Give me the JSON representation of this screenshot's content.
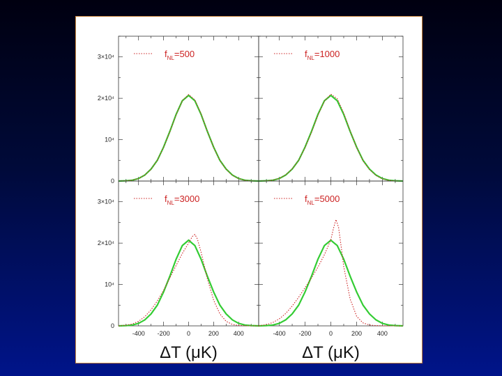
{
  "chart_data": {
    "type": "line",
    "xlabel": "ΔT (μK)",
    "xlim": [
      -560,
      560
    ],
    "xticks": [
      -400,
      -200,
      0,
      200,
      400
    ],
    "ylim": [
      0,
      35000
    ],
    "yticks": [
      {
        "value": 0,
        "label": "0"
      },
      {
        "value": 10000,
        "label": "10⁴"
      },
      {
        "value": 20000,
        "label": "2×10⁴"
      },
      {
        "value": 30000,
        "label": "3×10⁴"
      }
    ],
    "colors": {
      "gaussian": "#33cc33",
      "non_gaussian": "#cc2222"
    },
    "panels": [
      {
        "legend": {
          "prefix": "f",
          "subscript": "NL",
          "suffix": "=500"
        },
        "series": [
          {
            "style": "solid",
            "color": "#33cc33",
            "x": [
              -560,
              -500,
              -450,
              -400,
              -350,
              -300,
              -250,
              -200,
              -150,
              -100,
              -50,
              0,
              50,
              100,
              150,
              200,
              250,
              300,
              350,
              400,
              450,
              500,
              560
            ],
            "y": [
              0,
              60,
              200,
              600,
              1450,
              2900,
              5000,
              8200,
              12000,
              16100,
              19400,
              20700,
              19400,
              16100,
              12000,
              8200,
              5000,
              2900,
              1450,
              600,
              200,
              60,
              0
            ]
          },
          {
            "style": "dotted",
            "color": "#cc2222",
            "x": [
              -560,
              -500,
              -450,
              -400,
              -350,
              -300,
              -250,
              -200,
              -150,
              -100,
              -50,
              0,
              50,
              100,
              150,
              200,
              250,
              300,
              350,
              400,
              450,
              500,
              560
            ],
            "y": [
              0,
              60,
              200,
              600,
              1450,
              2900,
              5000,
              8150,
              11900,
              16000,
              19400,
              20900,
              19600,
              16200,
              12000,
              8150,
              4950,
              2850,
              1400,
              560,
              180,
              50,
              0
            ]
          }
        ]
      },
      {
        "legend": {
          "prefix": "f",
          "subscript": "NL",
          "suffix": "=1000"
        },
        "series": [
          {
            "style": "solid",
            "color": "#33cc33",
            "x": [
              -560,
              -500,
              -450,
              -400,
              -350,
              -300,
              -250,
              -200,
              -150,
              -100,
              -50,
              0,
              50,
              100,
              150,
              200,
              250,
              300,
              350,
              400,
              450,
              500,
              560
            ],
            "y": [
              0,
              60,
              200,
              600,
              1450,
              2900,
              5000,
              8200,
              12000,
              16100,
              19400,
              20700,
              19400,
              16100,
              12000,
              8200,
              5000,
              2900,
              1450,
              600,
              200,
              60,
              0
            ]
          },
          {
            "style": "dotted",
            "color": "#cc2222",
            "x": [
              -560,
              -500,
              -450,
              -400,
              -350,
              -300,
              -250,
              -200,
              -150,
              -100,
              -50,
              0,
              50,
              100,
              150,
              200,
              250,
              300,
              350,
              400,
              450,
              500,
              560
            ],
            "y": [
              0,
              70,
              220,
              640,
              1500,
              2950,
              5000,
              8100,
              11800,
              15900,
              19300,
              21000,
              19900,
              16400,
              12100,
              8100,
              4900,
              2800,
              1350,
              520,
              160,
              40,
              0
            ]
          }
        ]
      },
      {
        "legend": {
          "prefix": "f",
          "subscript": "NL",
          "suffix": "=3000"
        },
        "series": [
          {
            "style": "solid",
            "color": "#33cc33",
            "x": [
              -560,
              -500,
              -450,
              -400,
              -350,
              -300,
              -250,
              -200,
              -150,
              -100,
              -50,
              0,
              50,
              100,
              150,
              200,
              250,
              300,
              350,
              400,
              450,
              500,
              560
            ],
            "y": [
              0,
              60,
              200,
              600,
              1450,
              2900,
              5000,
              8200,
              12000,
              16100,
              19400,
              20700,
              19400,
              16100,
              12000,
              8200,
              5000,
              2900,
              1450,
              600,
              200,
              60,
              0
            ]
          },
          {
            "style": "dotted",
            "color": "#cc2222",
            "x": [
              -560,
              -500,
              -450,
              -400,
              -350,
              -300,
              -250,
              -200,
              -150,
              -100,
              -50,
              0,
              30,
              50,
              70,
              100,
              150,
              200,
              250,
              300,
              350,
              400,
              450,
              500,
              560
            ],
            "y": [
              0,
              150,
              450,
              1100,
              2200,
              3900,
              6000,
              8600,
              11600,
              14600,
              17500,
              20000,
              21600,
              22100,
              21000,
              17800,
              11400,
              6200,
              2900,
              1100,
              350,
              100,
              30,
              10,
              0
            ]
          }
        ]
      },
      {
        "legend": {
          "prefix": "f",
          "subscript": "NL",
          "suffix": "=5000"
        },
        "series": [
          {
            "style": "solid",
            "color": "#33cc33",
            "x": [
              -560,
              -500,
              -450,
              -400,
              -350,
              -300,
              -250,
              -200,
              -150,
              -100,
              -50,
              0,
              50,
              100,
              150,
              200,
              250,
              300,
              350,
              400,
              450,
              500,
              560
            ],
            "y": [
              0,
              60,
              200,
              600,
              1450,
              2900,
              5000,
              8200,
              12000,
              16100,
              19400,
              20700,
              19400,
              16100,
              12000,
              8200,
              5000,
              2900,
              1450,
              600,
              200,
              60,
              0
            ]
          },
          {
            "style": "dotted",
            "color": "#cc2222",
            "x": [
              -560,
              -500,
              -450,
              -400,
              -350,
              -300,
              -250,
              -200,
              -150,
              -100,
              -50,
              0,
              20,
              40,
              60,
              80,
              100,
              150,
              200,
              250,
              300,
              350,
              400,
              450,
              500,
              560
            ],
            "y": [
              0,
              300,
              800,
              1700,
              3000,
              4800,
              6900,
              9200,
              11600,
              14200,
              17200,
              20800,
              23500,
              25700,
              23800,
              19200,
              14300,
              6500,
              2300,
              700,
              200,
              60,
              20,
              10,
              5,
              0
            ]
          }
        ]
      }
    ]
  }
}
